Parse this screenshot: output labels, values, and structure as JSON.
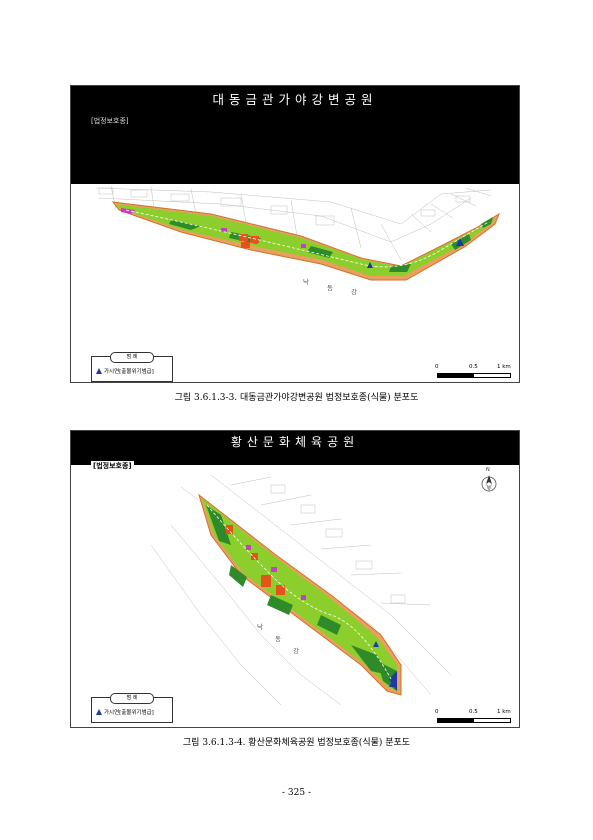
{
  "figure1": {
    "banner_title": "대동금관가야강변공원",
    "banner_tag": "[법정보호종]",
    "legend_title": "범 례",
    "legend_item": "가시연[출몰위기범급]",
    "river_chars": [
      "낙",
      "동",
      "강"
    ],
    "scale_labels": [
      "0",
      "0.5",
      "1 km"
    ],
    "caption": "그림 3.6.1.3-3. 대동금관가야강변공원 법정보호종(식물) 분포도"
  },
  "figure2": {
    "banner_title": "황산문화체육공원",
    "banner_tag": "[법정보호종]",
    "legend_title": "범 례",
    "legend_item": "가시연[출몰위기범급]",
    "river_chars": [
      "낙",
      "동",
      "강"
    ],
    "scale_labels": [
      "0",
      "0.5",
      "1 km"
    ],
    "north_label": "N",
    "caption": "그림 3.6.1.3-4. 황산문화체육공원 법정보호종(식물) 분포도"
  },
  "page_number": "- 325 -",
  "colors": {
    "park_green": "#8ccf2c",
    "dark_green": "#2f8a2a",
    "orange": "#e2541c",
    "magenta": "#c83cc8",
    "river_border": "#d2702c",
    "species_marker": "#1b3aa6"
  }
}
